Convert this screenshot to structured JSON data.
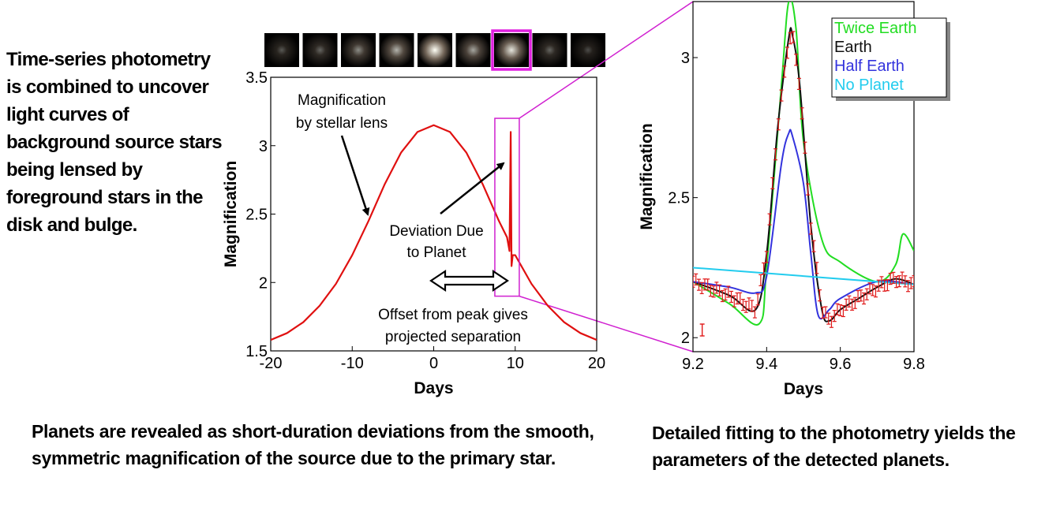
{
  "left_text": "Time-series photometry is combined to uncover light curves of background source stars being lensed by foreground stars in the disk and bulge.",
  "bottom_left_text": "Planets are revealed as short-duration deviations from the smooth, symmetric magnification of the source due to the primary star.",
  "bottom_right_text": "Detailed fitting to the photometry yields the parameters of the detected planets.",
  "frames": {
    "brightness": [
      0.25,
      0.3,
      0.45,
      0.6,
      0.95,
      0.55,
      0.8,
      0.3,
      0.2
    ],
    "highlighted_index": 6,
    "highlight_color": "#e020e0"
  },
  "chart_data": [
    {
      "type": "line",
      "xlabel": "Days",
      "ylabel": "Magnification",
      "xlim": [
        -20,
        20
      ],
      "ylim": [
        1.5,
        3.5
      ],
      "x_ticks": [
        "-20",
        "-10",
        "0",
        "10",
        "20"
      ],
      "y_ticks": [
        "1.5",
        "2",
        "2.5",
        "3",
        "3.5"
      ],
      "series": [
        {
          "color": "#e01010",
          "x": [
            -20,
            -18,
            -16,
            -14,
            -12,
            -10,
            -8,
            -6,
            -4,
            -2,
            0,
            2,
            4,
            6,
            8,
            9,
            9.3,
            9.45,
            9.55,
            9.7,
            10,
            12,
            14,
            16,
            18,
            20
          ],
          "y": [
            1.58,
            1.63,
            1.71,
            1.83,
            1.99,
            2.2,
            2.45,
            2.72,
            2.95,
            3.1,
            3.15,
            3.1,
            2.95,
            2.72,
            2.45,
            2.33,
            2.23,
            3.1,
            2.12,
            2.2,
            2.2,
            1.99,
            1.83,
            1.71,
            1.63,
            1.58
          ]
        }
      ],
      "annotations": {
        "stellar_lens": [
          "Magnification",
          "by stellar lens"
        ],
        "deviation": [
          "Deviation Due",
          "to Planet"
        ],
        "offset": [
          "Offset from peak gives",
          "projected separation"
        ]
      },
      "highlight_box": {
        "x": [
          7.5,
          10.5
        ],
        "y": [
          1.9,
          3.2
        ],
        "color": "#d020d0"
      }
    },
    {
      "type": "line",
      "xlabel": "Days",
      "ylabel": "Magnification",
      "xlim": [
        9.2,
        9.8
      ],
      "ylim": [
        1.95,
        3.2
      ],
      "x_ticks": [
        "9.2",
        "9.4",
        "9.6",
        "9.8"
      ],
      "y_ticks": [
        "2",
        "2.5",
        "3"
      ],
      "legend": {
        "placement": "top-right",
        "entries": [
          {
            "label": "Twice Earth",
            "color": "#22dd22"
          },
          {
            "label": "Earth",
            "color": "#111111"
          },
          {
            "label": "Half Earth",
            "color": "#3333dd"
          },
          {
            "label": "No Planet",
            "color": "#22ccee"
          }
        ]
      },
      "series": [
        {
          "name": "Twice Earth",
          "color": "#22dd22",
          "x": [
            9.2,
            9.3,
            9.38,
            9.4,
            9.44,
            9.46,
            9.48,
            9.5,
            9.55,
            9.6,
            9.7,
            9.75,
            9.77,
            9.8
          ],
          "y": [
            2.2,
            2.12,
            2.05,
            2.25,
            2.9,
            3.2,
            3.1,
            2.7,
            2.35,
            2.27,
            2.2,
            2.26,
            2.37,
            2.31
          ]
        },
        {
          "name": "Earth",
          "color": "#111111",
          "x": [
            9.2,
            9.3,
            9.37,
            9.4,
            9.43,
            9.46,
            9.47,
            9.49,
            9.52,
            9.55,
            9.57,
            9.6,
            9.65,
            9.7,
            9.75,
            9.8
          ],
          "y": [
            2.2,
            2.15,
            2.1,
            2.3,
            2.75,
            3.07,
            3.08,
            2.9,
            2.4,
            2.1,
            2.06,
            2.1,
            2.14,
            2.18,
            2.21,
            2.19
          ]
        },
        {
          "name": "Half Earth",
          "color": "#3333dd",
          "x": [
            9.2,
            9.3,
            9.37,
            9.4,
            9.44,
            9.46,
            9.47,
            9.5,
            9.52,
            9.54,
            9.57,
            9.6,
            9.7,
            9.8
          ],
          "y": [
            2.2,
            2.18,
            2.16,
            2.22,
            2.62,
            2.73,
            2.72,
            2.55,
            2.3,
            2.08,
            2.1,
            2.14,
            2.2,
            2.19
          ]
        },
        {
          "name": "No Planet",
          "color": "#22ccee",
          "x": [
            9.2,
            9.8
          ],
          "y": [
            2.25,
            2.19
          ]
        }
      ]
    }
  ]
}
